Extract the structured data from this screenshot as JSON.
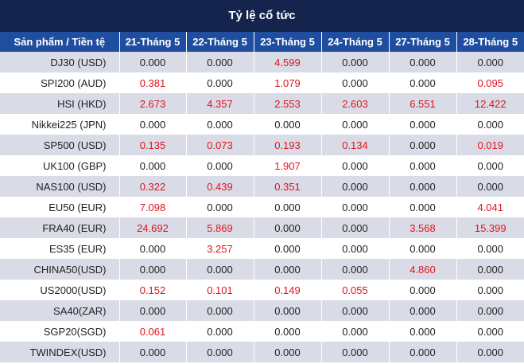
{
  "title": "Tỷ lệ cổ tức",
  "colors": {
    "title_bg": "#14244d",
    "header_bg": "#1f4ea1",
    "stripe": "#d9dce6",
    "positive": "#e0141e"
  },
  "columns": [
    "Sản phẩm / Tiền tệ",
    "21-Tháng 5",
    "22-Tháng 5",
    "23-Tháng 5",
    "24-Tháng 5",
    "27-Tháng 5",
    "28-Tháng 5"
  ],
  "rows": [
    {
      "product": "DJ30 (USD)",
      "values": [
        "0.000",
        "0.000",
        "4.599",
        "0.000",
        "0.000",
        "0.000"
      ]
    },
    {
      "product": "SPI200 (AUD)",
      "values": [
        "0.381",
        "0.000",
        "1.079",
        "0.000",
        "0.000",
        "0.095"
      ]
    },
    {
      "product": "HSI (HKD)",
      "values": [
        "2.673",
        "4.357",
        "2.553",
        "2.603",
        "6.551",
        "12.422"
      ]
    },
    {
      "product": "Nikkei225 (JPN)",
      "values": [
        "0.000",
        "0.000",
        "0.000",
        "0.000",
        "0.000",
        "0.000"
      ]
    },
    {
      "product": "SP500 (USD)",
      "values": [
        "0.135",
        "0.073",
        "0.193",
        "0.134",
        "0.000",
        "0.019"
      ]
    },
    {
      "product": "UK100 (GBP)",
      "values": [
        "0.000",
        "0.000",
        "1.907",
        "0.000",
        "0.000",
        "0.000"
      ]
    },
    {
      "product": "NAS100 (USD)",
      "values": [
        "0.322",
        "0.439",
        "0.351",
        "0.000",
        "0.000",
        "0.000"
      ]
    },
    {
      "product": "EU50 (EUR)",
      "values": [
        "7.098",
        "0.000",
        "0.000",
        "0.000",
        "0.000",
        "4.041"
      ]
    },
    {
      "product": "FRA40 (EUR)",
      "values": [
        "24.692",
        "5.869",
        "0.000",
        "0.000",
        "3.568",
        "15.399"
      ]
    },
    {
      "product": "ES35 (EUR)",
      "values": [
        "0.000",
        "3.257",
        "0.000",
        "0.000",
        "0.000",
        "0.000"
      ]
    },
    {
      "product": "CHINA50(USD)",
      "values": [
        "0.000",
        "0.000",
        "0.000",
        "0.000",
        "4.860",
        "0.000"
      ]
    },
    {
      "product": "US2000(USD)",
      "values": [
        "0.152",
        "0.101",
        "0.149",
        "0.055",
        "0.000",
        "0.000"
      ]
    },
    {
      "product": "SA40(ZAR)",
      "values": [
        "0.000",
        "0.000",
        "0.000",
        "0.000",
        "0.000",
        "0.000"
      ]
    },
    {
      "product": "SGP20(SGD)",
      "values": [
        "0.061",
        "0.000",
        "0.000",
        "0.000",
        "0.000",
        "0.000"
      ]
    },
    {
      "product": "TWINDEX(USD)",
      "values": [
        "0.000",
        "0.000",
        "0.000",
        "0.000",
        "0.000",
        "0.000"
      ]
    }
  ]
}
